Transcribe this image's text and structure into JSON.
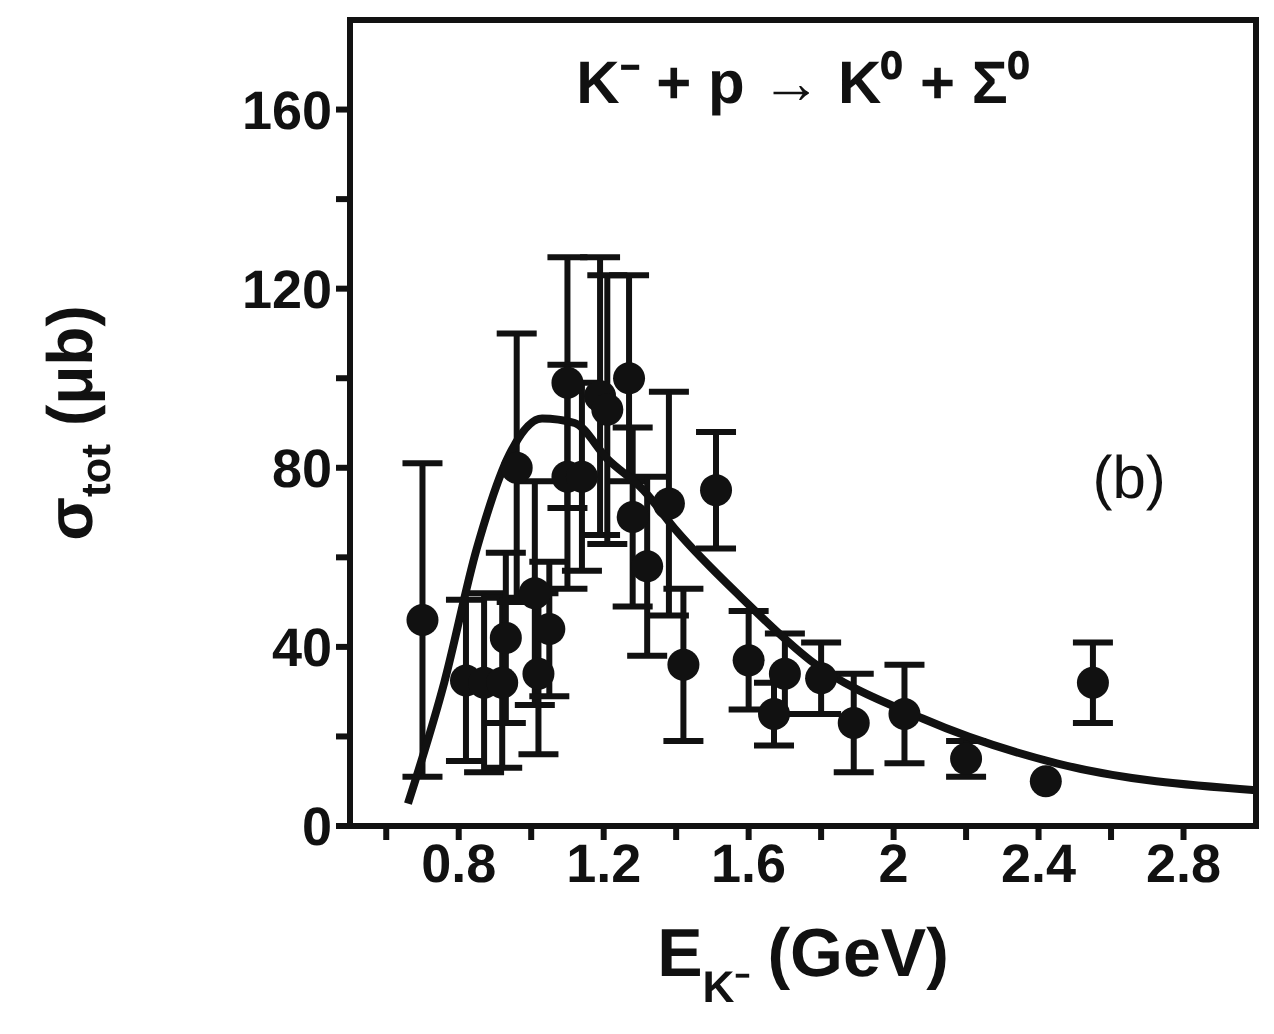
{
  "chart_data": {
    "type": "scatter",
    "xlabel": "E$_{K⁻}$ (GeV)",
    "ylabel": "σ$_{tot}$ (μb)",
    "annotations": [
      "K⁻ + p → K⁰ + Σ⁰",
      "(b)"
    ],
    "xlim": [
      0.5,
      3.0
    ],
    "ylim": [
      0,
      180
    ],
    "xticks": [
      {
        "value": 0.6,
        "label": null
      },
      0.8,
      {
        "value": 1.0,
        "label": null
      },
      1.2,
      {
        "value": 1.4,
        "label": null
      },
      1.6,
      {
        "value": 1.8,
        "label": null
      },
      2,
      {
        "value": 2.2,
        "label": null
      },
      2.4,
      {
        "value": 2.6,
        "label": null
      },
      2.8
    ],
    "yticks": [
      0,
      {
        "value": 20,
        "label": null
      },
      40,
      {
        "value": 60,
        "label": null
      },
      80,
      {
        "value": 100,
        "label": null
      },
      120,
      {
        "value": 140,
        "label": null
      },
      160
    ],
    "grid": false,
    "legend": false,
    "marker": "circle",
    "series": [
      {
        "color": "#111111",
        "x": [
          0.7,
          0.82,
          0.87,
          0.92,
          0.93,
          0.96,
          1.01,
          1.02,
          1.05,
          1.1,
          1.1,
          1.14,
          1.19,
          1.21,
          1.27,
          1.28,
          1.32,
          1.38,
          1.42,
          1.51,
          1.6,
          1.67,
          1.7,
          1.8,
          1.89,
          2.03,
          2.2,
          2.42,
          2.55
        ],
        "values": [
          46,
          32.5,
          32,
          32,
          42,
          80,
          52,
          34,
          44,
          99,
          78,
          78,
          96,
          93,
          100,
          69,
          58,
          72,
          36,
          75,
          37,
          25,
          34,
          33,
          23,
          25,
          15,
          10,
          32
        ],
        "errors": [
          35,
          18,
          20,
          19,
          19,
          30,
          25,
          18,
          15,
          28,
          25,
          21,
          31,
          30,
          23,
          20,
          20,
          25,
          17,
          13,
          11,
          7,
          9,
          8,
          11,
          11,
          4,
          null,
          9
        ]
      },
      {
        "type": "line",
        "color": "#111111",
        "line_style": "solid",
        "marker": "none",
        "x": [
          0.66,
          0.76,
          0.85,
          0.94,
          1.03,
          1.12,
          1.21,
          1.31,
          1.4,
          1.58,
          1.77,
          2.08,
          2.45,
          3.0
        ],
        "values": [
          5,
          32,
          62,
          83,
          91,
          90,
          82,
          75,
          66,
          51,
          37,
          24,
          14,
          8
        ]
      }
    ]
  }
}
